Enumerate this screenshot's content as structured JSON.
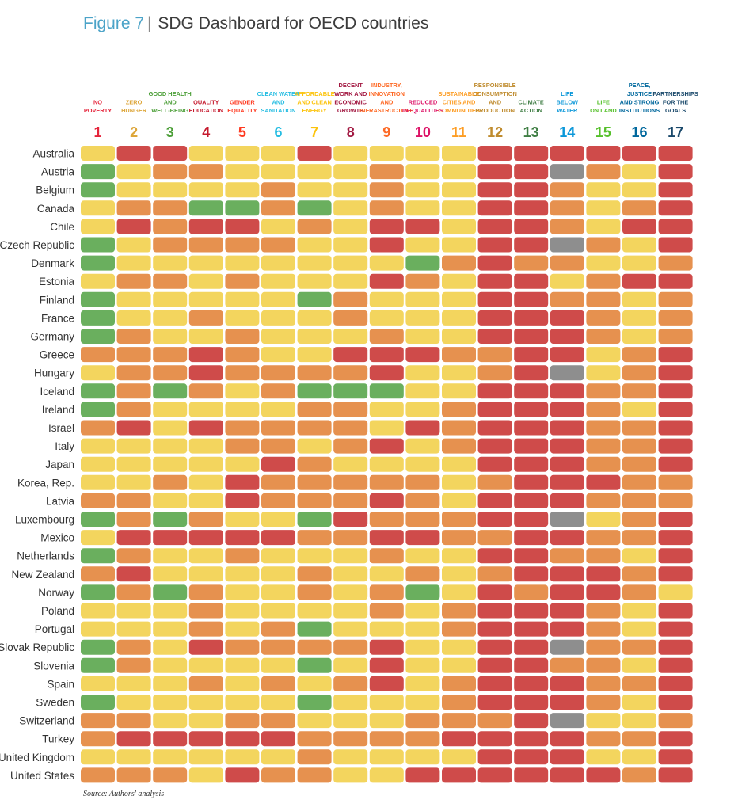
{
  "figure": {
    "label": "Figure 7",
    "separator": "|",
    "title": "SDG Dashboard for OECD countries"
  },
  "source": "Source: Authors' analysis",
  "colors": {
    "green": "#6aaf5e",
    "yellow": "#f3d55e",
    "orange": "#e6914f",
    "red": "#cf4b4a",
    "grey": "#8e8e8e"
  },
  "goals": [
    {
      "num": "1",
      "label": [
        "NO",
        "POVERTY"
      ],
      "color": "#e5243b"
    },
    {
      "num": "2",
      "label": [
        "ZERO",
        "HUNGER"
      ],
      "color": "#dda63a"
    },
    {
      "num": "3",
      "label": [
        "GOOD HEALTH",
        "AND",
        "WELL-BEING"
      ],
      "color": "#4c9f38"
    },
    {
      "num": "4",
      "label": [
        "QUALITY",
        "EDUCATION"
      ],
      "color": "#c5192d"
    },
    {
      "num": "5",
      "label": [
        "GENDER",
        "EQUALITY"
      ],
      "color": "#ff3a21"
    },
    {
      "num": "6",
      "label": [
        "CLEAN WATER",
        "AND",
        "SANITATION"
      ],
      "color": "#26bde2"
    },
    {
      "num": "7",
      "label": [
        "AFFORDABLE",
        "AND CLEAN",
        "ENERGY"
      ],
      "color": "#fcc30b"
    },
    {
      "num": "8",
      "label": [
        "DECENT",
        "WORK AND",
        "ECONOMIC",
        "GROWTH"
      ],
      "color": "#a21942"
    },
    {
      "num": "9",
      "label": [
        "INDUSTRY,",
        "INNOVATION",
        "AND",
        "INFRASTRUCTURE"
      ],
      "color": "#fd6925"
    },
    {
      "num": "10",
      "label": [
        "REDUCED",
        "INEQUALITIES"
      ],
      "color": "#dd1367"
    },
    {
      "num": "11",
      "label": [
        "SUSTAINABLE",
        "CITIES AND",
        "COMMUNITIES"
      ],
      "color": "#fd9d24"
    },
    {
      "num": "12",
      "label": [
        "RESPONSIBLE",
        "CONSUMPTION",
        "AND",
        "PRODUCTION"
      ],
      "color": "#bf8b2e"
    },
    {
      "num": "13",
      "label": [
        "CLIMATE",
        "ACTION"
      ],
      "color": "#3f7e44"
    },
    {
      "num": "14",
      "label": [
        "LIFE",
        "BELOW",
        "WATER"
      ],
      "color": "#0a97d9"
    },
    {
      "num": "15",
      "label": [
        "LIFE",
        "ON LAND"
      ],
      "color": "#56c02b"
    },
    {
      "num": "16",
      "label": [
        "PEACE,",
        "JUSTICE",
        "AND STRONG",
        "INSTITUTIONS"
      ],
      "color": "#00689d"
    },
    {
      "num": "17",
      "label": [
        "PARTNERSHIPS",
        "FOR THE",
        "GOALS"
      ],
      "color": "#19486a"
    }
  ],
  "chart_data": {
    "type": "heatmap",
    "legend_codes": {
      "g": "green",
      "y": "yellow",
      "o": "orange",
      "r": "red",
      "x": "grey"
    },
    "rows": [
      {
        "country": "Australia",
        "cells": "yrryyyryyyyrrrrrr"
      },
      {
        "country": "Austria",
        "cells": "gyooyyyyoyyrrxoyr"
      },
      {
        "country": "Belgium",
        "cells": "gyyyyoyyoyyrroyyr"
      },
      {
        "country": "Canada",
        "cells": "yooggogyoyyrroyor"
      },
      {
        "country": "Chile",
        "cells": "yrorryoyrryrroyrr"
      },
      {
        "country": "Czech Republic",
        "cells": "gyooooyyryyrrxoyr"
      },
      {
        "country": "Denmark",
        "cells": "gyyyyyyyygorooyyo"
      },
      {
        "country": "Estonia",
        "cells": "yooyoyyyroyrryorr"
      },
      {
        "country": "Finland",
        "cells": "gyyyyygoyyyrrooyo"
      },
      {
        "country": "France",
        "cells": "gyyoyyyoyyyrrroyo"
      },
      {
        "country": "Germany",
        "cells": "goyyoyyyoyyrrroyo"
      },
      {
        "country": "Greece",
        "cells": "oooroyyrrroorryor"
      },
      {
        "country": "Hungary",
        "cells": "yoorooooryyorxyor"
      },
      {
        "country": "Iceland",
        "cells": "gogoyogggyyrrroor"
      },
      {
        "country": "Ireland",
        "cells": "goyyyyooyyorrroyr"
      },
      {
        "country": "Israel",
        "cells": "oryrooooyrorrroor"
      },
      {
        "country": "Italy",
        "cells": "yyyyooyoryorrroor"
      },
      {
        "country": "Japan",
        "cells": "yyyyyroyyyyrrroor"
      },
      {
        "country": "Korea, Rep.",
        "cells": "yyoyroooooyorrroo"
      },
      {
        "country": "Latvia",
        "cells": "ooyyroooroyrrrooo"
      },
      {
        "country": "Luxembourg",
        "cells": "gogoyygrooorrxyor"
      },
      {
        "country": "Mexico",
        "cells": "yrrrrroorroorroor"
      },
      {
        "country": "Netherlands",
        "cells": "goyyoyyyoyyrrooyr"
      },
      {
        "country": "New Zealand",
        "cells": "oryyyyoyyoyorrror"
      },
      {
        "country": "Norway",
        "cells": "gogoyyoyogyrorroy"
      },
      {
        "country": "Poland",
        "cells": "yyyoyyyyoyorrroyr"
      },
      {
        "country": "Portugal",
        "cells": "yyyoyogyyyorrroyr"
      },
      {
        "country": "Slovak Republic",
        "cells": "goyrooooryyrrxoor"
      },
      {
        "country": "Slovenia",
        "cells": "goyyyygyryyrrooyr"
      },
      {
        "country": "Spain",
        "cells": "yyyoyoyoryorrroor"
      },
      {
        "country": "Sweden",
        "cells": "gyyyyygyyyorrroyr"
      },
      {
        "country": "Switzerland",
        "cells": "ooyyooyyyooorxyyo"
      },
      {
        "country": "Turkey",
        "cells": "orrrrroooorrrroor"
      },
      {
        "country": "United Kingdom",
        "cells": "yyyyyyoyyyyrrryyr"
      },
      {
        "country": "United States",
        "cells": "oooyrooyyrrrrrror"
      }
    ]
  }
}
